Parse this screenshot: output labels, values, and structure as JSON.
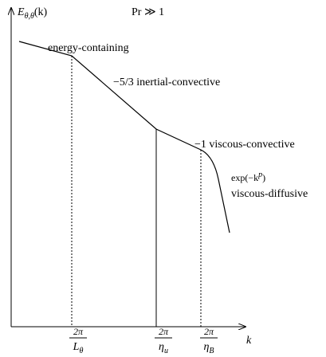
{
  "title": "Pr ≫ 1",
  "y_axis": {
    "symbol": "E",
    "subscript": "θ,θ",
    "argument": "(k)"
  },
  "x_axis": {
    "label": "k"
  },
  "regions": [
    {
      "label": "energy-containing"
    },
    {
      "label": "−5/3 inertial-convective"
    },
    {
      "label": "−1 viscous-convective"
    },
    {
      "formula": {
        "base": "exp(−k",
        "superscript": "p",
        "close": ")"
      },
      "label": "viscous-diffusive"
    }
  ],
  "markers": [
    {
      "numerator": "2π",
      "symbol": "L",
      "subscript": "θ"
    },
    {
      "numerator": "2π",
      "symbol": "η",
      "subscript": "u"
    },
    {
      "numerator": "2π",
      "symbol": "η",
      "subscript": "B"
    }
  ]
}
